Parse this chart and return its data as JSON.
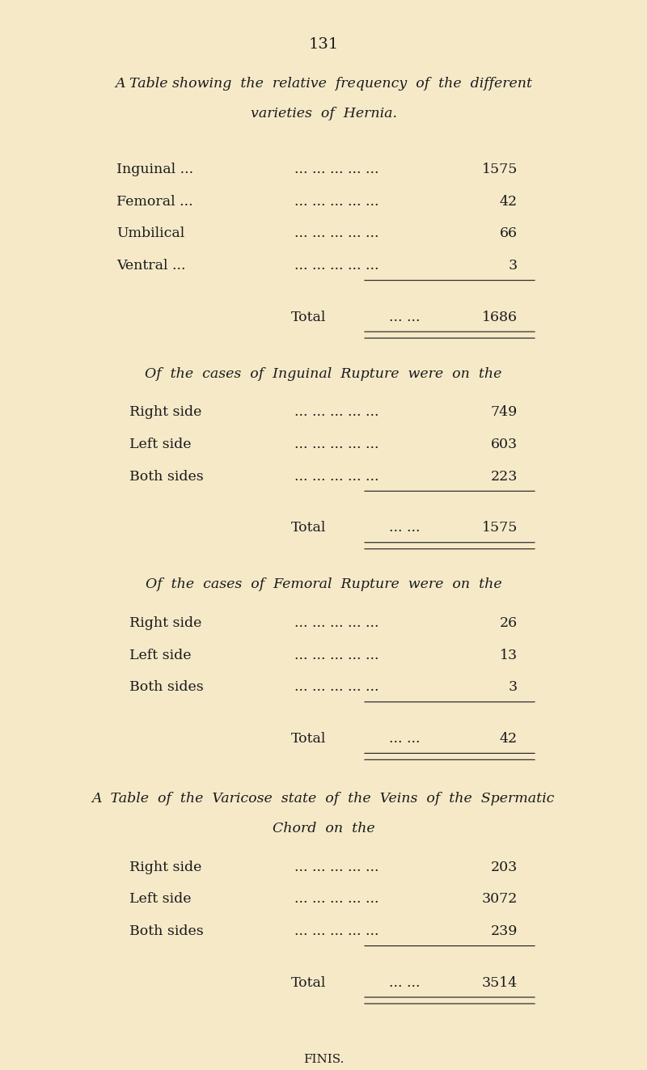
{
  "bg_color": "#f5e9c8",
  "text_color": "#1a1a1a",
  "page_number": "131",
  "section1_title_line1": "A Table showing  the  relative  frequency  of  the  different",
  "section1_title_line2": "varieties  of  Hernia.",
  "section1_rows": [
    [
      "Inguinal ...",
      "... ... ... ... ...",
      "1575"
    ],
    [
      "Femoral ...",
      "... ... ... ... ...",
      "42"
    ],
    [
      "Umbilical",
      "... ... ... ... ...",
      "66"
    ],
    [
      "Ventral ...",
      "... ... ... ... ...",
      "3"
    ]
  ],
  "section1_total_label": "Total",
  "section1_total_dots": "... ...",
  "section1_total_value": "1686",
  "section2_title": "Of  the  cases  of  Inguinal  Rupture  were  on  the",
  "section2_rows": [
    [
      "Right side",
      "... ... ... ... ...",
      "749"
    ],
    [
      "Left side",
      "... ... ... ... ...",
      "603"
    ],
    [
      "Both sides",
      "... ... ... ... ...",
      "223"
    ]
  ],
  "section2_total_label": "Total",
  "section2_total_dots": "... ...",
  "section2_total_value": "1575",
  "section3_title": "Of  the  cases  of  Femoral  Rupture  were  on  the",
  "section3_rows": [
    [
      "Right side",
      "... ... ... ... ...",
      "26"
    ],
    [
      "Left side",
      "... ... ... ... ...",
      "13"
    ],
    [
      "Both sides",
      "... ... ... ... ...",
      "3"
    ]
  ],
  "section3_total_label": "Total",
  "section3_total_dots": "... ...",
  "section3_total_value": "42",
  "section4_title_line1": "A  Table  of  the  Varicose  state  of  the  Veins  of  the  Spermatic",
  "section4_title_line2": "Chord  on  the",
  "section4_rows": [
    [
      "Right side",
      "... ... ... ... ...",
      "203"
    ],
    [
      "Left side",
      "... ... ... ... ...",
      "3072"
    ],
    [
      "Both sides",
      "... ... ... ... ...",
      "239"
    ]
  ],
  "section4_total_label": "Total",
  "section4_total_dots": "... ...",
  "section4_total_value": "3514",
  "finis_text": "FINIS."
}
